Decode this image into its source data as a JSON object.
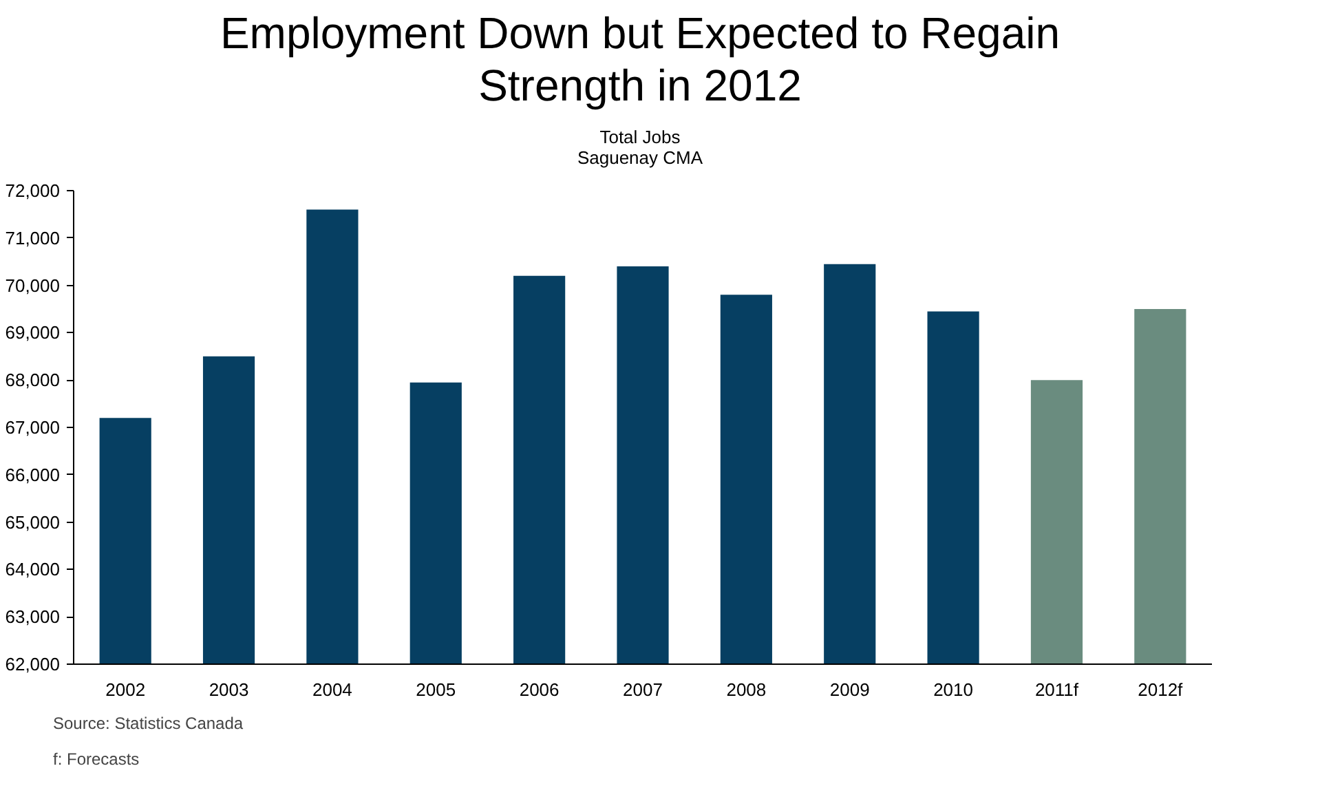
{
  "chart_data": {
    "type": "bar",
    "title": "Employment Down but Expected to Regain Strength in 2012",
    "subtitle": "Total Jobs\nSaguenay CMA",
    "categories": [
      "2002",
      "2003",
      "2004",
      "2005",
      "2006",
      "2007",
      "2008",
      "2009",
      "2010",
      "2011f",
      "2012f"
    ],
    "values": [
      67200,
      68500,
      71600,
      67950,
      70200,
      70400,
      69800,
      70450,
      69450,
      68000,
      69500
    ],
    "colors": [
      "#063f62",
      "#063f62",
      "#063f62",
      "#063f62",
      "#063f62",
      "#063f62",
      "#063f62",
      "#063f62",
      "#063f62",
      "#6a8c7f",
      "#6a8c7f"
    ],
    "ylim": [
      62000,
      72000
    ],
    "yticks": [
      {
        "value": 62000,
        "label": "62,000"
      },
      {
        "value": 63000,
        "label": "63,000"
      },
      {
        "value": 64000,
        "label": "64,000"
      },
      {
        "value": 65000,
        "label": "65,000"
      },
      {
        "value": 66000,
        "label": "66,000"
      },
      {
        "value": 67000,
        "label": "67,000"
      },
      {
        "value": 68000,
        "label": "68,000"
      },
      {
        "value": 69000,
        "label": "69,000"
      },
      {
        "value": 70000,
        "label": "70,000"
      },
      {
        "value": 71000,
        "label": "71,000"
      },
      {
        "value": 72000,
        "label": "72,000"
      }
    ],
    "grid": false,
    "annotations": [
      "Source: Statistics  Canada",
      "f: Forecasts"
    ]
  }
}
